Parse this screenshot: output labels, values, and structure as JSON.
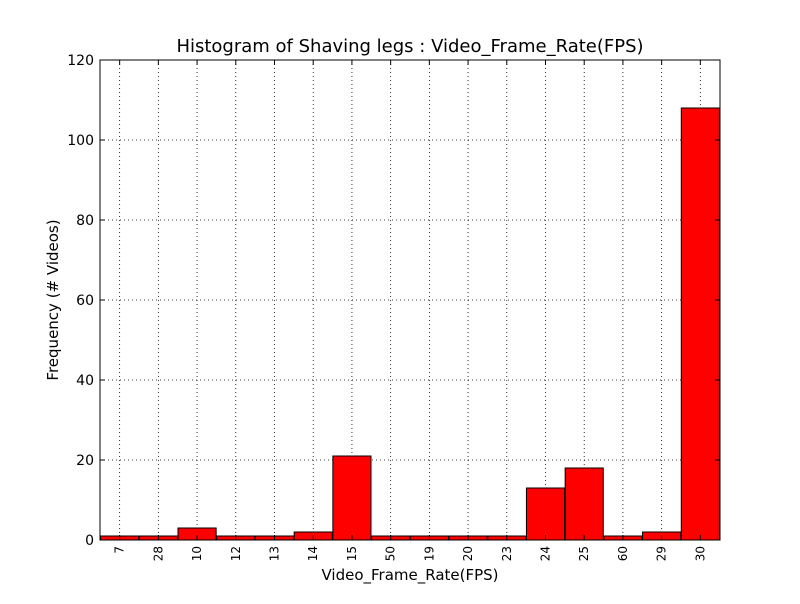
{
  "chart_data": {
    "type": "bar",
    "title": "Histogram of Shaving legs : Video_Frame_Rate(FPS)",
    "xlabel": "Video_Frame_Rate(FPS)",
    "ylabel": "Frequency (# Videos)",
    "categories": [
      "7",
      "28",
      "10",
      "12",
      "13",
      "14",
      "15",
      "50",
      "19",
      "20",
      "23",
      "24",
      "25",
      "60",
      "29",
      "30"
    ],
    "values": [
      1,
      1,
      3,
      1,
      1,
      2,
      21,
      1,
      1,
      1,
      1,
      13,
      18,
      1,
      2,
      108
    ],
    "ylim": [
      0,
      120
    ],
    "yticks": [
      "0",
      "20",
      "40",
      "60",
      "80",
      "100",
      "120"
    ],
    "grid": true,
    "bar_color": "#ff0000",
    "edge_color": "#000000"
  }
}
